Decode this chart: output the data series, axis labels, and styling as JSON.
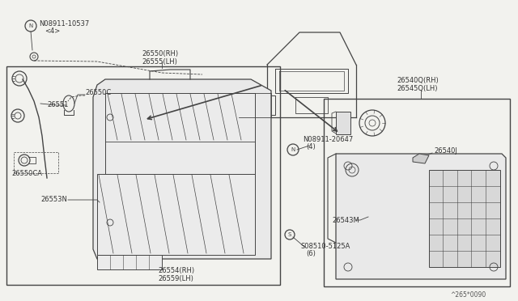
{
  "bg_color": "#f2f2ee",
  "line_color": "#444444",
  "title_ref": "^265*0090",
  "labels": {
    "nut1_text": "N08911-10537",
    "nut1_sub": "<4>",
    "nut2_text": "N08911-20647",
    "nut2_sub": "(4)",
    "screw_text": "S08510-5125A",
    "screw_sub": "(6)",
    "p26550": "26550(RH)\n26555(LH)",
    "p26551": "26551",
    "p26550c": "26550C",
    "p26550ca": "26550CA",
    "p26553n": "26553N",
    "p26554": "26554(RH)\n26559(LH)",
    "p26540rh": "26540Q(RH)\n26545Q(LH)",
    "p26540j": "26540J",
    "p26543m": "26543M"
  }
}
